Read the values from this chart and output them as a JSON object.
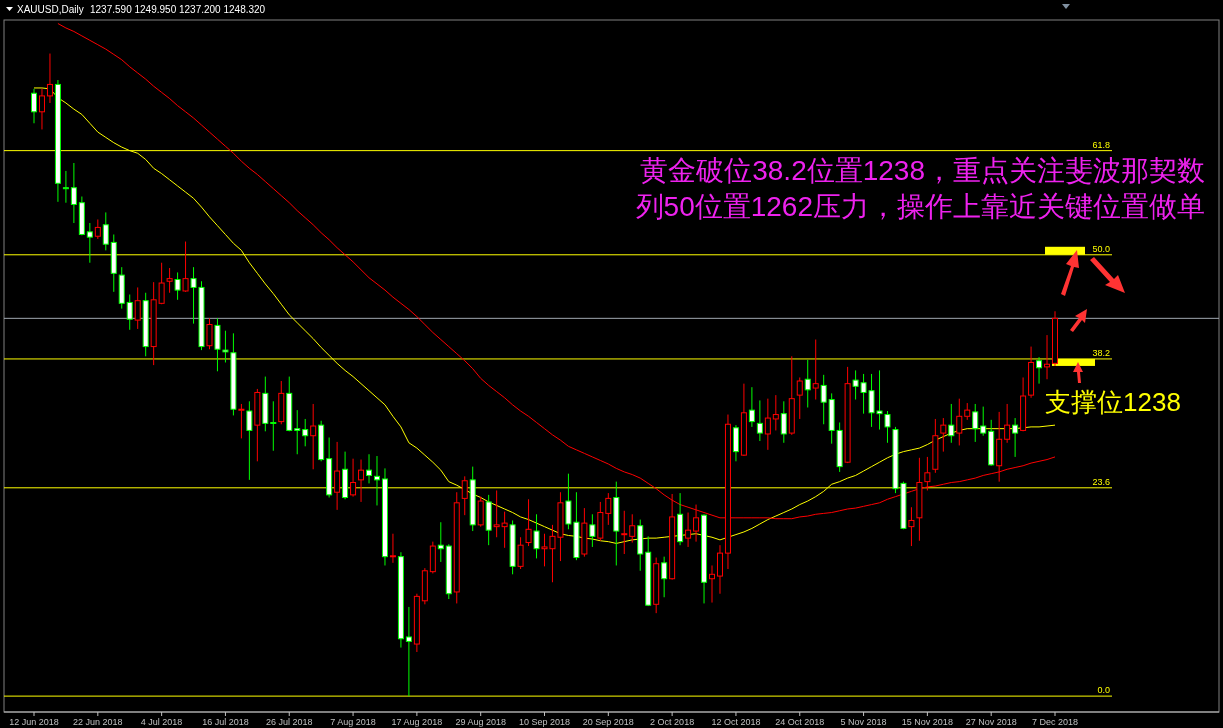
{
  "chart_data": {
    "type": "candlestick",
    "title": "XAUUSD,Daily",
    "subtitle": "1237.590 1249.950 1237.200 1248.320",
    "categories": [
      "12 Jun 2018",
      null,
      null,
      null,
      null,
      null,
      null,
      null,
      "22 Jun 2018",
      null,
      null,
      null,
      null,
      null,
      null,
      null,
      "4 Jul 2018",
      null,
      null,
      null,
      null,
      null,
      null,
      null,
      "16 Jul 2018",
      null,
      null,
      null,
      null,
      null,
      null,
      null,
      "26 Jul 2018",
      null,
      null,
      null,
      null,
      null,
      null,
      null,
      "7 Aug 2018",
      null,
      null,
      null,
      null,
      null,
      null,
      null,
      "17 Aug 2018",
      null,
      null,
      null,
      null,
      null,
      null,
      null,
      "29 Aug 2018",
      null,
      null,
      null,
      null,
      null,
      null,
      null,
      "10 Sep 2018",
      null,
      null,
      null,
      null,
      null,
      null,
      null,
      "20 Sep 2018",
      null,
      null,
      null,
      null,
      null,
      null,
      null,
      "2 Oct 2018",
      null,
      null,
      null,
      null,
      null,
      null,
      null,
      "12 Oct 2018",
      null,
      null,
      null,
      null,
      null,
      null,
      null,
      "24 Oct 2018",
      null,
      null,
      null,
      null,
      null,
      null,
      null,
      "5 Nov 2018",
      null,
      null,
      null,
      null,
      null,
      null,
      null,
      "15 Nov 2018",
      null,
      null,
      null,
      null,
      null,
      null,
      null,
      "27 Nov 2018",
      null,
      null,
      null,
      null,
      null,
      null,
      null,
      "7 Dec 2018"
    ],
    "ohlc": [
      [
        68.3,
        68.8,
        64.9,
        66.2
      ],
      [
        66.2,
        68.8,
        64.2,
        68.0
      ],
      [
        68.0,
        72.8,
        67.2,
        69.3
      ],
      [
        69.3,
        69.8,
        56.0,
        58.1
      ],
      [
        57.6,
        59.5,
        55.9,
        57.5
      ],
      [
        57.6,
        60.4,
        53.6,
        55.7
      ],
      [
        55.9,
        56.6,
        52.2,
        52.3
      ],
      [
        52.6,
        53.6,
        49.1,
        52.0
      ],
      [
        52.1,
        54.0,
        51.8,
        53.1
      ],
      [
        53.4,
        54.8,
        50.5,
        51.2
      ],
      [
        51.4,
        52.3,
        45.8,
        47.9
      ],
      [
        47.7,
        48.6,
        43.9,
        44.5
      ],
      [
        44.6,
        45.5,
        41.5,
        42.7
      ],
      [
        42.6,
        46.3,
        41.6,
        44.8
      ],
      [
        44.8,
        45.7,
        38.5,
        39.6
      ],
      [
        39.6,
        46.9,
        37.5,
        44.9
      ],
      [
        44.5,
        49.1,
        44.4,
        46.8
      ],
      [
        47.0,
        48.5,
        45.7,
        47.3
      ],
      [
        47.2,
        48.0,
        44.9,
        46.0
      ],
      [
        45.9,
        51.5,
        45.8,
        47.3
      ],
      [
        47.3,
        48.6,
        42.2,
        46.3
      ],
      [
        46.3,
        47.0,
        39.2,
        39.6
      ],
      [
        39.7,
        42.8,
        39.3,
        42.1
      ],
      [
        42.0,
        42.8,
        36.8,
        39.3
      ],
      [
        39.2,
        41.4,
        37.8,
        39.0
      ],
      [
        38.9,
        41.1,
        31.8,
        32.5
      ],
      [
        32.4,
        33.1,
        29.2,
        32.5
      ],
      [
        32.3,
        33.4,
        24.5,
        30.1
      ],
      [
        30.7,
        34.8,
        26.6,
        34.4
      ],
      [
        34.3,
        36.2,
        30.0,
        30.9
      ],
      [
        31.0,
        33.4,
        27.8,
        30.9
      ],
      [
        31.1,
        35.7,
        30.8,
        34.3
      ],
      [
        34.3,
        36.2,
        30.0,
        30.1
      ],
      [
        30.3,
        32.4,
        27.4,
        30.1
      ],
      [
        30.2,
        31.4,
        28.3,
        29.5
      ],
      [
        29.5,
        33.1,
        25.7,
        30.6
      ],
      [
        30.7,
        31.2,
        26.6,
        26.8
      ],
      [
        26.9,
        29.3,
        22.5,
        22.8
      ],
      [
        23.1,
        28.8,
        21.1,
        25.5
      ],
      [
        25.7,
        27.7,
        22.3,
        22.5
      ],
      [
        22.8,
        26.9,
        22.6,
        24.2
      ],
      [
        24.5,
        26.8,
        22.0,
        25.6
      ],
      [
        25.6,
        27.4,
        24.1,
        25.0
      ],
      [
        24.9,
        27.2,
        21.6,
        24.5
      ],
      [
        24.6,
        25.8,
        14.8,
        15.8
      ],
      [
        15.8,
        18.4,
        15.1,
        15.9
      ],
      [
        15.8,
        16.3,
        5.5,
        6.5
      ],
      [
        6.7,
        10.1,
        0.0,
        6.2
      ],
      [
        5.9,
        11.6,
        5.0,
        11.3
      ],
      [
        10.8,
        14.5,
        10.4,
        14.2
      ],
      [
        14.1,
        17.5,
        13.9,
        17.0
      ],
      [
        17.1,
        19.7,
        15.2,
        16.7
      ],
      [
        17.0,
        17.2,
        11.0,
        11.6
      ],
      [
        11.8,
        23.1,
        10.5,
        21.9
      ],
      [
        22.4,
        24.9,
        20.5,
        24.4
      ],
      [
        24.5,
        26.0,
        18.7,
        19.4
      ],
      [
        19.4,
        22.6,
        19.2,
        22.1
      ],
      [
        22.0,
        22.8,
        17.1,
        18.8
      ],
      [
        19.2,
        23.3,
        18.0,
        19.4
      ],
      [
        19.2,
        20.9,
        16.8,
        19.6
      ],
      [
        19.4,
        19.9,
        13.8,
        14.7
      ],
      [
        14.7,
        18.0,
        14.4,
        17.1
      ],
      [
        17.4,
        22.3,
        17.0,
        18.9
      ],
      [
        18.7,
        20.6,
        15.6,
        16.7
      ],
      [
        16.7,
        18.4,
        14.7,
        16.9
      ],
      [
        16.7,
        19.4,
        12.9,
        18.1
      ],
      [
        18.0,
        23.1,
        15.3,
        21.9
      ],
      [
        22.1,
        25.2,
        18.9,
        19.5
      ],
      [
        19.7,
        23.1,
        15.4,
        15.7
      ],
      [
        16.1,
        21.3,
        15.8,
        19.6
      ],
      [
        19.4,
        20.6,
        16.9,
        18.1
      ],
      [
        17.9,
        22.0,
        17.6,
        20.8
      ],
      [
        20.7,
        23.0,
        19.4,
        22.4
      ],
      [
        22.5,
        24.3,
        14.8,
        18.7
      ],
      [
        18.3,
        21.0,
        16.1,
        18.4
      ],
      [
        18.1,
        20.6,
        17.4,
        19.3
      ],
      [
        19.3,
        20.0,
        14.2,
        16.1
      ],
      [
        16.3,
        18.1,
        10.2,
        10.3
      ],
      [
        10.4,
        15.7,
        9.4,
        15.0
      ],
      [
        15.1,
        15.8,
        11.2,
        13.3
      ],
      [
        13.3,
        22.9,
        13.2,
        20.3
      ],
      [
        20.6,
        23.0,
        17.1,
        17.5
      ],
      [
        17.9,
        20.8,
        16.9,
        18.8
      ],
      [
        18.7,
        21.7,
        17.5,
        20.2
      ],
      [
        20.5,
        20.6,
        10.5,
        12.9
      ],
      [
        13.3,
        14.8,
        10.6,
        13.8
      ],
      [
        13.6,
        17.1,
        11.6,
        16.2
      ],
      [
        16.2,
        31.9,
        14.4,
        30.8
      ],
      [
        30.4,
        30.7,
        26.6,
        27.7
      ],
      [
        27.3,
        35.4,
        27.2,
        32.1
      ],
      [
        32.4,
        35.0,
        30.5,
        31.1
      ],
      [
        30.9,
        33.5,
        28.9,
        29.8
      ],
      [
        29.7,
        33.7,
        27.9,
        31.5
      ],
      [
        31.4,
        34.1,
        30.1,
        31.9
      ],
      [
        32.0,
        33.4,
        28.7,
        29.7
      ],
      [
        29.8,
        38.5,
        29.6,
        33.7
      ],
      [
        34.1,
        36.1,
        31.4,
        35.7
      ],
      [
        35.9,
        38.1,
        32.7,
        34.7
      ],
      [
        34.9,
        40.4,
        33.6,
        35.4
      ],
      [
        35.2,
        36.4,
        30.8,
        33.3
      ],
      [
        33.6,
        34.3,
        28.6,
        30.1
      ],
      [
        30.1,
        31.0,
        25.4,
        26.0
      ],
      [
        26.5,
        37.3,
        26.4,
        35.4
      ],
      [
        35.8,
        36.9,
        33.6,
        35.1
      ],
      [
        35.5,
        36.5,
        32.0,
        34.4
      ],
      [
        34.6,
        36.5,
        30.5,
        32.1
      ],
      [
        32.3,
        36.9,
        30.2,
        32.0
      ],
      [
        31.9,
        32.3,
        28.7,
        30.5
      ],
      [
        30.2,
        30.5,
        23.0,
        23.5
      ],
      [
        24.1,
        24.3,
        18.9,
        19.0
      ],
      [
        19.2,
        21.4,
        17.0,
        19.9
      ],
      [
        20.2,
        27.0,
        17.6,
        24.2
      ],
      [
        24.3,
        27.1,
        23.3,
        25.3
      ],
      [
        25.7,
        31.4,
        25.3,
        29.5
      ],
      [
        29.8,
        31.5,
        27.7,
        30.7
      ],
      [
        30.7,
        33.1,
        28.7,
        29.5
      ],
      [
        29.8,
        33.7,
        28.4,
        31.7
      ],
      [
        31.7,
        33.2,
        31.3,
        32.4
      ],
      [
        32.2,
        33.1,
        28.8,
        30.3
      ],
      [
        30.6,
        32.8,
        29.5,
        29.8
      ],
      [
        30.0,
        31.3,
        26.1,
        26.2
      ],
      [
        26.1,
        32.2,
        24.3,
        29.1
      ],
      [
        29.1,
        33.1,
        28.7,
        30.7
      ],
      [
        30.7,
        31.5,
        27.1,
        29.8
      ],
      [
        30.1,
        36.1,
        30.0,
        34.0
      ],
      [
        34.1,
        39.6,
        33.8,
        37.8
      ],
      [
        38.0,
        38.4,
        35.4,
        37.2
      ],
      [
        37.3,
        40.9,
        35.9,
        37.6
      ],
      [
        37.7,
        43.6,
        37.4,
        42.8
      ]
    ],
    "series": [
      {
        "type": "line",
        "color": "#ffff00",
        "values": [
          68.9,
          68.9,
          68.8,
          67.8,
          67.2,
          66.5,
          65.9,
          64.9,
          63.9,
          63.3,
          62.7,
          62.2,
          61.8,
          61.5,
          60.8,
          59.8,
          59.2,
          58.5,
          57.8,
          57.1,
          56.4,
          55.4,
          54.3,
          53.3,
          52.3,
          51.3,
          50.5,
          49.1,
          47.9,
          46.7,
          45.6,
          44.4,
          43.2,
          42.3,
          41.4,
          40.5,
          39.5,
          38.6,
          37.7,
          36.9,
          36.2,
          35.4,
          34.6,
          33.8,
          33.0,
          31.7,
          30.5,
          28.7,
          28.1,
          27.3,
          26.5,
          25.6,
          24.3,
          23.9,
          23.4,
          22.9,
          22.5,
          22.0,
          21.6,
          21.2,
          20.8,
          20.3,
          20.0,
          19.6,
          19.2,
          18.8,
          18.4,
          18.2,
          18.1,
          17.9,
          17.8,
          17.6,
          17.5,
          17.3,
          17.5,
          17.7,
          17.8,
          17.9,
          17.9,
          18.0,
          18.1,
          18.2,
          18.3,
          18.4,
          18.2,
          18.0,
          17.7,
          18.0,
          18.3,
          18.6,
          19.0,
          19.5,
          20.0,
          20.4,
          20.8,
          21.2,
          21.7,
          22.1,
          22.6,
          23.2,
          24.0,
          24.3,
          24.7,
          25.0,
          25.5,
          26.0,
          26.5,
          27.0,
          27.4,
          27.7,
          27.9,
          28.1,
          28.5,
          29.0,
          29.4,
          29.8,
          30.1,
          30.3,
          30.3,
          30.3,
          30.3,
          30.3,
          30.3,
          30.3,
          30.4,
          30.5,
          30.5,
          30.6,
          30.7
        ]
      },
      {
        "type": "line",
        "color": "#ff0000",
        "values": [
          null,
          null,
          null,
          76.2,
          75.7,
          75.3,
          74.8,
          74.3,
          73.8,
          73.3,
          72.7,
          72.1,
          71.3,
          70.6,
          69.9,
          69.1,
          68.4,
          67.7,
          66.9,
          66.2,
          65.5,
          64.7,
          63.9,
          63.1,
          62.3,
          61.5,
          60.6,
          59.8,
          59.1,
          58.3,
          57.5,
          56.7,
          55.9,
          55.0,
          54.2,
          53.4,
          52.5,
          51.7,
          50.8,
          50.0,
          49.2,
          48.3,
          47.4,
          46.7,
          46.0,
          45.2,
          44.5,
          43.8,
          43.0,
          42.1,
          41.2,
          40.4,
          39.6,
          38.8,
          38.0,
          37.1,
          36.0,
          35.2,
          34.5,
          33.8,
          33.0,
          32.3,
          31.7,
          31.0,
          30.3,
          29.6,
          29.0,
          28.3,
          27.9,
          27.5,
          27.1,
          26.7,
          26.3,
          25.8,
          25.4,
          25.1,
          24.7,
          24.1,
          23.5,
          22.8,
          22.2,
          21.7,
          21.4,
          21.1,
          20.8,
          20.5,
          20.2,
          20.2,
          20.2,
          20.2,
          20.2,
          20.2,
          20.2,
          20.1,
          20.1,
          20.1,
          20.3,
          20.4,
          20.6,
          20.7,
          20.8,
          21.0,
          21.2,
          21.3,
          21.5,
          21.7,
          21.9,
          22.3,
          22.6,
          22.9,
          23.2,
          23.5,
          23.7,
          23.8,
          24.0,
          24.2,
          24.3,
          24.5,
          24.7,
          25.0,
          25.2,
          25.4,
          25.7,
          25.9,
          26.1,
          26.4,
          26.6,
          26.8,
          27.1
        ]
      }
    ],
    "ylim": [
      -1.8,
      76.6
    ],
    "yticks": [
      {
        "value": 0,
        "label": "0.0"
      },
      23.6,
      38.2,
      {
        "value": 50,
        "label": "50.0"
      },
      61.8
    ],
    "grid": "y",
    "ref_lines": [
      {
        "axis": "y",
        "value": 42.8,
        "color": "#a0a8b0"
      }
    ],
    "annotations": [
      "黄金破位38.2位置1238，重点关注斐波那契数列50位置1262压力，操作上靠近关键位置做单",
      "支撑位1238"
    ]
  }
}
